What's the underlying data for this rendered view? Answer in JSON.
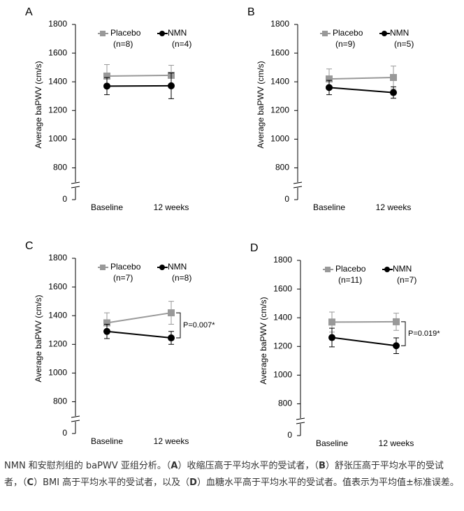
{
  "chart_data": [
    {
      "type": "line",
      "panel": "A",
      "ylabel": "Average baPWV (cm/s)",
      "categories": [
        "Baseline",
        "12 weeks"
      ],
      "ylim": [
        0,
        1800
      ],
      "ybreak": [
        0,
        700
      ],
      "yticks": [
        0,
        800,
        1000,
        1200,
        1400,
        1600,
        1800
      ],
      "series": [
        {
          "name": "Placebo",
          "n_label": "(n=8)",
          "color": "#999999",
          "marker": "square",
          "values": [
            1440,
            1445
          ],
          "errors": [
            80,
            70
          ]
        },
        {
          "name": "NMN",
          "n_label": "(n=4)",
          "color": "#000000",
          "marker": "circle",
          "values": [
            1370,
            1372
          ],
          "errors": [
            60,
            90
          ]
        }
      ]
    },
    {
      "type": "line",
      "panel": "B",
      "ylabel": "Average baPWV (cm/s)",
      "categories": [
        "Baseline",
        "12 weeks"
      ],
      "ylim": [
        0,
        1800
      ],
      "ybreak": [
        0,
        700
      ],
      "yticks": [
        0,
        800,
        1000,
        1200,
        1400,
        1600,
        1800
      ],
      "series": [
        {
          "name": "Placebo",
          "n_label": "(n=9)",
          "color": "#999999",
          "marker": "square",
          "values": [
            1420,
            1430
          ],
          "errors": [
            70,
            80
          ]
        },
        {
          "name": "NMN",
          "n_label": "(n=5)",
          "color": "#000000",
          "marker": "circle",
          "values": [
            1360,
            1325
          ],
          "errors": [
            50,
            40
          ]
        }
      ]
    },
    {
      "type": "line",
      "panel": "C",
      "ylabel": "Average baPWV (cm/s)",
      "categories": [
        "Baseline",
        "12 weeks"
      ],
      "ylim": [
        0,
        1800
      ],
      "ybreak": [
        0,
        700
      ],
      "yticks": [
        0,
        800,
        1000,
        1200,
        1400,
        1600,
        1800
      ],
      "annotation": "P=0.007*",
      "series": [
        {
          "name": "Placebo",
          "n_label": "(n=7)",
          "color": "#999999",
          "marker": "square",
          "values": [
            1350,
            1420
          ],
          "errors": [
            70,
            80
          ]
        },
        {
          "name": "NMN",
          "n_label": "(n=8)",
          "color": "#000000",
          "marker": "circle",
          "values": [
            1290,
            1245
          ],
          "errors": [
            50,
            45
          ]
        }
      ]
    },
    {
      "type": "line",
      "panel": "D",
      "ylabel": "Average baPWV (cm/s)",
      "categories": [
        "Baseline",
        "12 weeks"
      ],
      "ylim": [
        0,
        1800
      ],
      "ybreak": [
        0,
        700
      ],
      "yticks": [
        0,
        800,
        1000,
        1200,
        1400,
        1600,
        1800
      ],
      "annotation": "P=0.019*",
      "series": [
        {
          "name": "Placebo",
          "n_label": "(n=11)",
          "color": "#999999",
          "marker": "square",
          "values": [
            1370,
            1372
          ],
          "errors": [
            70,
            60
          ]
        },
        {
          "name": "NMN",
          "n_label": "(n=7)",
          "color": "#000000",
          "marker": "circle",
          "values": [
            1262,
            1205
          ],
          "errors": [
            65,
            55
          ]
        }
      ]
    }
  ],
  "caption": [
    {
      "text": "NMN 和安慰剂组的 baPWV 亚组分析。（",
      "bold": false
    },
    {
      "text": "A",
      "bold": true
    },
    {
      "text": "）收缩压高于平均水平的受试者，（",
      "bold": false
    },
    {
      "text": "B",
      "bold": true
    },
    {
      "text": "）舒张压高于平均水平的受试者，（",
      "bold": false
    },
    {
      "text": "C",
      "bold": true
    },
    {
      "text": "）BMI 高于平均水平的受试者，以及（",
      "bold": false
    },
    {
      "text": "D",
      "bold": true
    },
    {
      "text": "）血糖水平高于平均水平的受试者。值表示为平均值±标准误差。",
      "bold": false
    }
  ]
}
